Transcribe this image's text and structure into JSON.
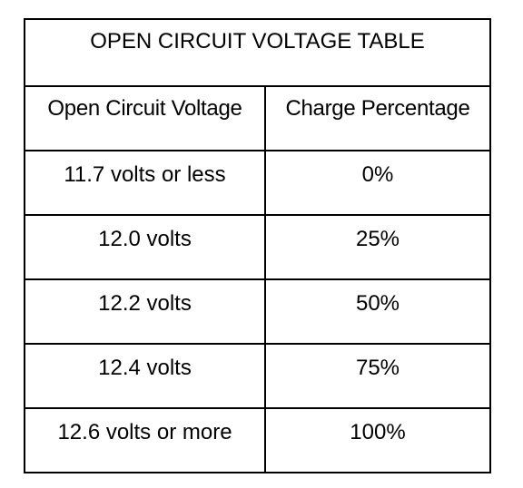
{
  "table": {
    "title": "OPEN CIRCUIT VOLTAGE TABLE",
    "headers": [
      "Open Circuit Voltage",
      "Charge Percentage"
    ],
    "rows": [
      [
        "11.7 volts or less",
        "0%"
      ],
      [
        "12.0 volts",
        "25%"
      ],
      [
        "12.2 volts",
        "50%"
      ],
      [
        "12.4 volts",
        "75%"
      ],
      [
        "12.6 volts or more",
        "100%"
      ]
    ]
  }
}
